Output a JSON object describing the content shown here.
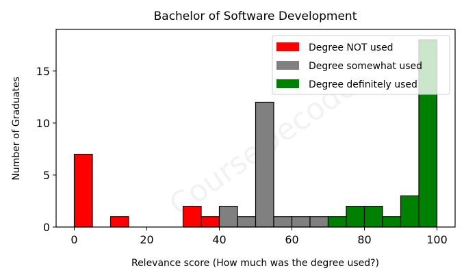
{
  "chart_data": {
    "type": "bar",
    "title": "Bachelor of Software Development",
    "xlabel": "Relevance score (How much was the degree used?)",
    "ylabel": "Number of Graduates",
    "xlim": [
      -5,
      105
    ],
    "ylim": [
      0,
      19
    ],
    "xticks": [
      0,
      20,
      40,
      60,
      80,
      100
    ],
    "yticks": [
      0,
      5,
      10,
      15
    ],
    "grid": false,
    "legend_position": "top-right",
    "watermark": "CourseDecoder",
    "series": [
      {
        "name": "Degree NOT used",
        "color": "#ff0000",
        "bins": [
          {
            "start": 0,
            "end": 5,
            "count": 7
          },
          {
            "start": 10,
            "end": 15,
            "count": 1
          },
          {
            "start": 30,
            "end": 35,
            "count": 2
          },
          {
            "start": 35,
            "end": 40,
            "count": 1
          }
        ]
      },
      {
        "name": "Degree somewhat used",
        "color": "#808080",
        "bins": [
          {
            "start": 40,
            "end": 45,
            "count": 2
          },
          {
            "start": 45,
            "end": 50,
            "count": 1
          },
          {
            "start": 50,
            "end": 55,
            "count": 12
          },
          {
            "start": 55,
            "end": 60,
            "count": 1
          },
          {
            "start": 60,
            "end": 65,
            "count": 1
          },
          {
            "start": 65,
            "end": 70,
            "count": 1
          }
        ]
      },
      {
        "name": "Degree definitely used",
        "color": "#008000",
        "bins": [
          {
            "start": 70,
            "end": 75,
            "count": 1
          },
          {
            "start": 75,
            "end": 80,
            "count": 2
          },
          {
            "start": 80,
            "end": 85,
            "count": 2
          },
          {
            "start": 85,
            "end": 90,
            "count": 1
          },
          {
            "start": 90,
            "end": 95,
            "count": 3
          },
          {
            "start": 95,
            "end": 100,
            "count": 18
          }
        ]
      }
    ]
  }
}
